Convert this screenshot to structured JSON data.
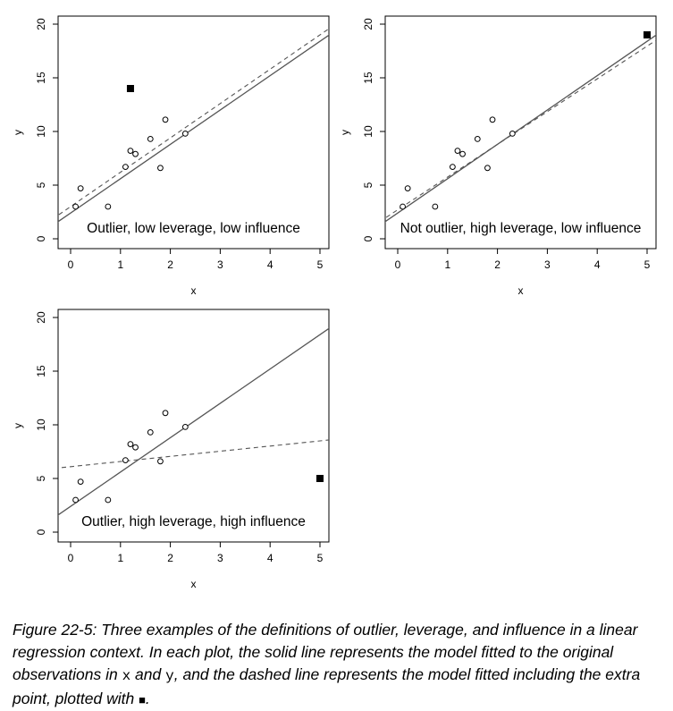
{
  "chart_data": [
    {
      "type": "scatter",
      "title": "Outlier, low leverage, low influence",
      "xlabel": "x",
      "ylabel": "y",
      "xlim": [
        0,
        5
      ],
      "ylim": [
        0,
        20
      ],
      "xticks": [
        "0",
        "1",
        "2",
        "3",
        "4",
        "5"
      ],
      "yticks": [
        "0",
        "5",
        "10",
        "15",
        "20"
      ],
      "grid": false,
      "legend": "none",
      "points": [
        [
          0.1,
          3.0
        ],
        [
          0.2,
          4.7
        ],
        [
          0.75,
          3.0
        ],
        [
          1.1,
          6.7
        ],
        [
          1.2,
          8.2
        ],
        [
          1.3,
          7.9
        ],
        [
          1.6,
          9.3
        ],
        [
          1.8,
          6.6
        ],
        [
          1.9,
          11.1
        ],
        [
          2.3,
          9.8
        ]
      ],
      "extra_point": [
        1.2,
        14.0
      ],
      "solid_line": {
        "intercept": 2.4,
        "slope": 3.2
      },
      "dashed_line": {
        "intercept": 3.0,
        "slope": 3.2
      }
    },
    {
      "type": "scatter",
      "title": "Not outlier, high leverage, low influence",
      "xlabel": "x",
      "ylabel": "y",
      "xlim": [
        0,
        5
      ],
      "ylim": [
        0,
        20
      ],
      "xticks": [
        "0",
        "1",
        "2",
        "3",
        "4",
        "5"
      ],
      "yticks": [
        "0",
        "5",
        "10",
        "15",
        "20"
      ],
      "grid": false,
      "legend": "none",
      "points": [
        [
          0.1,
          3.0
        ],
        [
          0.2,
          4.7
        ],
        [
          0.75,
          3.0
        ],
        [
          1.1,
          6.7
        ],
        [
          1.2,
          8.2
        ],
        [
          1.3,
          7.9
        ],
        [
          1.6,
          9.3
        ],
        [
          1.8,
          6.6
        ],
        [
          1.9,
          11.1
        ],
        [
          2.3,
          9.8
        ]
      ],
      "extra_point": [
        5.0,
        19.0
      ],
      "solid_line": {
        "intercept": 2.4,
        "slope": 3.2
      },
      "dashed_line": {
        "intercept": 2.7,
        "slope": 3.05
      }
    },
    {
      "type": "scatter",
      "title": "Outlier, high leverage, high influence",
      "xlabel": "x",
      "ylabel": "y",
      "xlim": [
        0,
        5
      ],
      "ylim": [
        0,
        20
      ],
      "xticks": [
        "0",
        "1",
        "2",
        "3",
        "4",
        "5"
      ],
      "yticks": [
        "0",
        "5",
        "10",
        "15",
        "20"
      ],
      "grid": false,
      "legend": "none",
      "points": [
        [
          0.1,
          3.0
        ],
        [
          0.2,
          4.7
        ],
        [
          0.75,
          3.0
        ],
        [
          1.1,
          6.7
        ],
        [
          1.2,
          8.2
        ],
        [
          1.3,
          7.9
        ],
        [
          1.6,
          9.3
        ],
        [
          1.8,
          6.6
        ],
        [
          1.9,
          11.1
        ],
        [
          2.3,
          9.8
        ]
      ],
      "extra_point": [
        5.0,
        5.0
      ],
      "solid_line": {
        "intercept": 2.4,
        "slope": 3.2
      },
      "dashed_line": {
        "intercept": 6.1,
        "slope": 0.48
      }
    }
  ],
  "caption": {
    "part1": "Figure 22-5: Three examples of the definitions of outlier, leverage, and influence in a linear regression context. In each plot, the solid line represents the model fitted to the original observations in ",
    "x_var": "x",
    "and_word": " and ",
    "y_var": "y",
    "part2": ", and the dashed line represents the model fitted including the extra point, plotted with ",
    "square_symbol": "■",
    "end": "."
  }
}
